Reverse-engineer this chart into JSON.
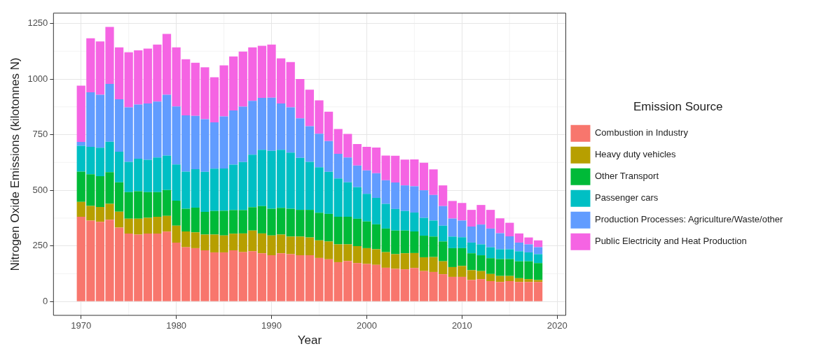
{
  "chart_data": {
    "type": "bar",
    "stacked": true,
    "xlabel": "Year",
    "ylabel": "Nitrogen Oxide Emissions (kilotonnes N)",
    "legend_title": "Emission Source",
    "legend": "right",
    "grid": true,
    "x": [
      1970,
      1971,
      1972,
      1973,
      1974,
      1975,
      1976,
      1977,
      1978,
      1979,
      1980,
      1981,
      1982,
      1983,
      1984,
      1985,
      1986,
      1987,
      1988,
      1989,
      1990,
      1991,
      1992,
      1993,
      1994,
      1995,
      1996,
      1997,
      1998,
      1999,
      2000,
      2001,
      2002,
      2003,
      2004,
      2005,
      2006,
      2007,
      2008,
      2009,
      2010,
      2011,
      2012,
      2013,
      2014,
      2015,
      2016,
      2017,
      2018
    ],
    "xlim": [
      1967.1,
      2020.9
    ],
    "xticks": [
      1970,
      1980,
      1990,
      2000,
      2010,
      2020
    ],
    "ylim": [
      -62,
      1296
    ],
    "yticks": [
      0,
      250,
      500,
      750,
      1000,
      1250
    ],
    "series": [
      {
        "name": "Combustion in Industry",
        "color": "#f8766d",
        "values": [
          381,
          364,
          358,
          368,
          332,
          306,
          301,
          306,
          306,
          314,
          265,
          244,
          240,
          230,
          221,
          221,
          230,
          222,
          226,
          217,
          208,
          217,
          213,
          208,
          208,
          196,
          190,
          177,
          182,
          173,
          169,
          165,
          152,
          147,
          145,
          151,
          137,
          133,
          123,
          111,
          111,
          97,
          101,
          92,
          88,
          92,
          88,
          88,
          88
        ]
      },
      {
        "name": "Heavy duty vehicles",
        "color": "#b79f00",
        "values": [
          67,
          66,
          67,
          71,
          72,
          66,
          71,
          70,
          75,
          71,
          76,
          71,
          71,
          71,
          80,
          76,
          75,
          84,
          93,
          89,
          89,
          84,
          79,
          84,
          80,
          79,
          80,
          80,
          75,
          76,
          71,
          70,
          70,
          66,
          72,
          67,
          62,
          67,
          58,
          44,
          49,
          44,
          36,
          32,
          27,
          23,
          17,
          13,
          9
        ]
      },
      {
        "name": "Other Transport",
        "color": "#00ba38",
        "values": [
          136,
          142,
          138,
          142,
          132,
          120,
          124,
          116,
          111,
          116,
          112,
          102,
          111,
          102,
          106,
          111,
          106,
          105,
          105,
          123,
          120,
          120,
          125,
          120,
          124,
          124,
          124,
          124,
          124,
          123,
          120,
          112,
          106,
          106,
          102,
          97,
          97,
          92,
          89,
          85,
          80,
          76,
          71,
          71,
          76,
          76,
          76,
          80,
          76
        ]
      },
      {
        "name": "Passenger cars",
        "color": "#00bfc4",
        "values": [
          116,
          123,
          128,
          137,
          137,
          136,
          146,
          145,
          155,
          155,
          163,
          167,
          173,
          180,
          190,
          190,
          204,
          216,
          236,
          253,
          260,
          261,
          252,
          234,
          216,
          204,
          189,
          172,
          155,
          142,
          124,
          119,
          111,
          97,
          88,
          85,
          80,
          72,
          71,
          52,
          49,
          48,
          49,
          49,
          44,
          44,
          45,
          40,
          40
        ]
      },
      {
        "name": "Production Processes: Agriculture/Waste/other",
        "color": "#619cff",
        "values": [
          17,
          245,
          238,
          260,
          236,
          245,
          243,
          253,
          252,
          273,
          261,
          253,
          239,
          236,
          208,
          234,
          244,
          249,
          242,
          233,
          239,
          208,
          204,
          177,
          160,
          151,
          138,
          111,
          111,
          97,
          105,
          111,
          106,
          119,
          115,
          118,
          124,
          115,
          88,
          81,
          75,
          72,
          89,
          84,
          72,
          58,
          39,
          36,
          31
        ]
      },
      {
        "name": "Public Electricity and Heat Production",
        "color": "#f564e3",
        "values": [
          253,
          243,
          240,
          256,
          233,
          247,
          244,
          247,
          256,
          274,
          265,
          252,
          239,
          234,
          203,
          229,
          242,
          247,
          240,
          234,
          239,
          203,
          203,
          177,
          164,
          150,
          132,
          111,
          106,
          97,
          106,
          115,
          111,
          120,
          116,
          121,
          124,
          115,
          93,
          79,
          79,
          75,
          88,
          84,
          67,
          61,
          41,
          31,
          31
        ]
      }
    ]
  }
}
